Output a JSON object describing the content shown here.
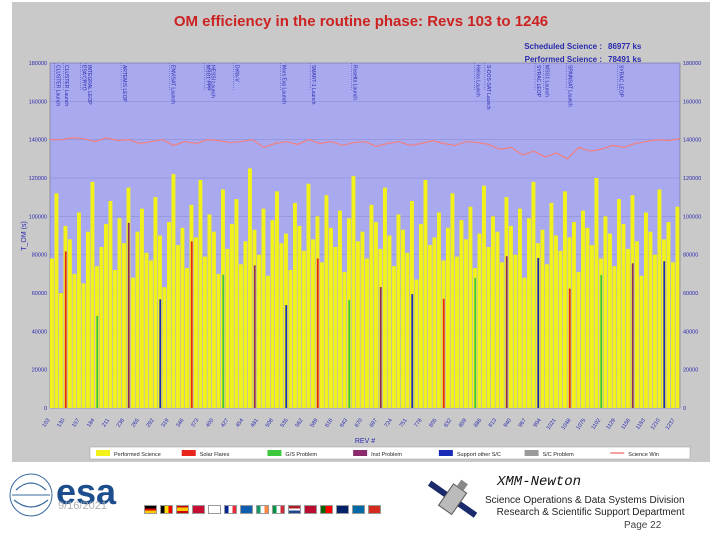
{
  "chart_data": {
    "type": "bar",
    "title": "OM efficiency in the routine phase: Revs 103 to 1246",
    "xlabel": "REV #",
    "ylabel": "T_OM (s)",
    "ylim": [
      0,
      180000
    ],
    "yticks": [
      0,
      20000,
      40000,
      60000,
      80000,
      100000,
      120000,
      140000,
      160000,
      180000
    ],
    "y2ticks": [
      0,
      20000,
      40000,
      60000,
      80000,
      100000,
      120000,
      140000,
      160000,
      180000
    ],
    "xrange": [
      103,
      1246
    ],
    "xticks": [
      103,
      130,
      157,
      184,
      211,
      238,
      265,
      292,
      319,
      346,
      373,
      400,
      427,
      454,
      481,
      508,
      535,
      562,
      589,
      616,
      643,
      670,
      697,
      724,
      751,
      778,
      805,
      832,
      859,
      886,
      913,
      940,
      967,
      994,
      1021,
      1048,
      1075,
      1102,
      1129,
      1156,
      1183,
      1210,
      1237
    ],
    "summary": {
      "scheduled_label": "Scheduled Science :",
      "scheduled_value": "86977 ks",
      "performed_label": "Performed Science :",
      "performed_value": "78491 ks"
    },
    "legend": [
      {
        "label": "Performed Science",
        "color": "#f2f21a"
      },
      {
        "label": "Solar Flares",
        "color": "#e8241c"
      },
      {
        "label": "G/S Problem",
        "color": "#3cc83c"
      },
      {
        "label": "Inst Problem",
        "color": "#8a2a6a"
      },
      {
        "label": "Support other S/C",
        "color": "#1a2ab8"
      },
      {
        "label": "S/C Problem",
        "color": "#9a9a9a"
      },
      {
        "label": "Science Win",
        "color": "#f08080"
      }
    ],
    "series": [
      {
        "name": "Performed Science",
        "values": [
          78000,
          112000,
          60000,
          95000,
          88000,
          70000,
          102000,
          65000,
          92000,
          118000,
          74000,
          84000,
          96000,
          108000,
          72000,
          99000,
          86000,
          115000,
          68000,
          92000,
          104000,
          81000,
          77000,
          110000,
          90000,
          63000,
          97000,
          122000,
          85000,
          94000,
          73000,
          106000,
          89000,
          119000,
          79000,
          101000,
          92000,
          70000,
          114000,
          83000,
          96000,
          109000,
          75000,
          87000,
          125000,
          93000,
          80000,
          104000,
          69000,
          98000,
          113000,
          86000,
          91000,
          72000,
          107000,
          95000,
          82000,
          117000,
          88000,
          100000,
          76000,
          111000,
          94000,
          84000,
          103000,
          71000,
          99000,
          121000,
          87000,
          92000,
          78000,
          106000,
          97000,
          83000,
          115000,
          90000,
          74000,
          101000,
          93000,
          81000,
          108000,
          67000,
          96000,
          119000,
          85000,
          89000,
          102000,
          77000,
          94000,
          112000,
          79000,
          98000,
          88000,
          105000,
          73000,
          91000,
          116000,
          84000,
          100000,
          92000,
          76000,
          110000,
          95000,
          80000,
          104000,
          68000,
          99000,
          118000,
          86000,
          93000,
          75000,
          107000,
          90000,
          82000,
          113000,
          89000,
          97000,
          71000,
          103000,
          94000,
          85000,
          120000,
          78000,
          100000,
          91000,
          74000,
          109000,
          96000,
          83000,
          111000,
          87000,
          69000,
          102000,
          92000,
          80000,
          114000,
          88000,
          97000,
          76000,
          105000
        ]
      },
      {
        "name": "Science Win",
        "values": [
          140000,
          140000,
          141000,
          140500,
          139000,
          141000,
          139500,
          140000,
          138000,
          139000,
          140000,
          137000,
          139000,
          138000,
          140000,
          139500,
          138500,
          139000,
          140000,
          136000,
          138000,
          139000,
          137500,
          140000,
          138000,
          139000,
          137000,
          138500,
          139000,
          136500,
          138000,
          139000,
          137000,
          138000,
          139500,
          138000,
          137000,
          139000,
          138500,
          137500,
          135000,
          136000,
          132000,
          134000,
          131000,
          133000,
          130000,
          136000,
          134000,
          135000,
          137000,
          136000,
          138000,
          139000,
          140000,
          139500,
          140500
        ]
      }
    ],
    "events": [
      {
        "label": "CLUSTER Launch",
        "rev": 111
      },
      {
        "label": "CLUSTER Launch",
        "rev": 127
      },
      {
        "label": "ESA CRYO",
        "rev": 158
      },
      {
        "label": "INTEGRAL LEOP",
        "rev": 168
      },
      {
        "label": "ARTEMIS LEOP",
        "rev": 232
      },
      {
        "label": "ENVISAT Launch",
        "rev": 320
      },
      {
        "label": "MSG1 PPP",
        "rev": 383
      },
      {
        "label": "HESSI Launch",
        "rev": 392
      },
      {
        "label": "Delta-V",
        "rev": 436
      },
      {
        "label": "Mars Exp Launch",
        "rev": 521
      },
      {
        "label": "SMART-1 Launch",
        "rev": 575
      },
      {
        "label": "Rosetta Launch",
        "rev": 650
      },
      {
        "label": "Helios Launch",
        "rev": 873
      },
      {
        "label": "S-DOS-SAT Launch",
        "rev": 892
      },
      {
        "label": "SYRAC LEOP",
        "rev": 983
      },
      {
        "label": "MSG1 Launch",
        "rev": 998
      },
      {
        "label": "SPAINSAT Launch",
        "rev": 1040
      },
      {
        "label": "SYRAC LEOP",
        "rev": 1133
      }
    ]
  },
  "footer": {
    "mission": "XMM-Newton",
    "division_line1": "Science Operations & Data Systems Division",
    "division_line2": "Research & Scientific Support Department",
    "page": "Page 22",
    "date": "9/16/2021",
    "logo_text": "esa"
  },
  "colors": {
    "plot_bg": "#a9a9f0",
    "frame_bg": "#c9c9c9",
    "title_color": "#cc2222",
    "axis_blue": "#2a2ab0"
  }
}
